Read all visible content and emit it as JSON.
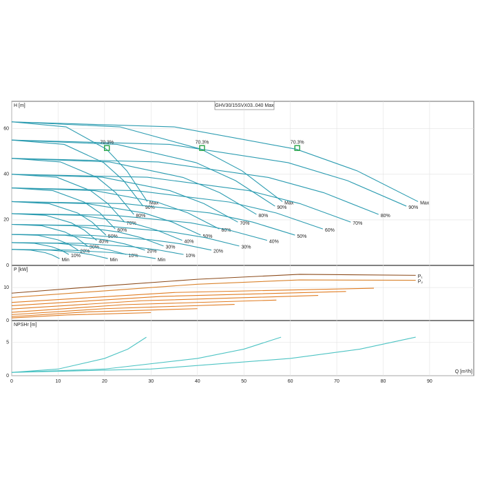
{
  "chart_data": [
    {
      "type": "line",
      "y_label": "H [m]",
      "annotation": "GHV30/15SVX03..040 Max",
      "xlim": [
        0,
        99.5
      ],
      "ylim": [
        0,
        72
      ],
      "yticks": [
        0,
        20,
        40,
        60
      ],
      "grid": true,
      "color": "#2a9bb0",
      "series": [
        {
          "name": "Max",
          "x": [
            0,
            11.7,
            20.4,
            24.8,
            29.2
          ],
          "values": [
            63,
            60.8,
            51.0,
            41.5,
            28
          ]
        },
        {
          "name": "90%",
          "x": [
            0,
            11.3,
            19.8,
            24.1,
            28.3
          ],
          "values": [
            55,
            53.1,
            45.1,
            37.2,
            26
          ]
        },
        {
          "name": "80%",
          "x": [
            0,
            10.5,
            18.4,
            22.4,
            26.3
          ],
          "values": [
            47,
            45.4,
            38.6,
            31.9,
            22.4
          ]
        },
        {
          "name": "70%",
          "x": [
            0,
            9.7,
            17,
            20.7,
            24.3
          ],
          "values": [
            40,
            38.7,
            32.8,
            27.1,
            19
          ]
        },
        {
          "name": "60%",
          "x": [
            0,
            8.9,
            15.6,
            19,
            22.3
          ],
          "values": [
            34,
            32.8,
            27.8,
            23,
            16
          ]
        },
        {
          "name": "50%",
          "x": [
            0,
            8.1,
            14.2,
            17.3,
            20.3
          ],
          "values": [
            28,
            27.1,
            23,
            19,
            13.3
          ]
        },
        {
          "name": "40%",
          "x": [
            0,
            7.3,
            12.8,
            15.6,
            18.3
          ],
          "values": [
            22.7,
            22,
            18.7,
            15.5,
            11
          ]
        },
        {
          "name": "30%",
          "x": [
            0,
            6.5,
            11.4,
            13.9,
            16.3
          ],
          "values": [
            18,
            17.4,
            14.7,
            12.2,
            8.5
          ]
        },
        {
          "name": "20%",
          "x": [
            0,
            5.7,
            10,
            12.2,
            14.3
          ],
          "values": [
            13.6,
            13.2,
            11.2,
            9.4,
            6.7
          ]
        },
        {
          "name": "10%",
          "x": [
            0,
            4.9,
            8.6,
            10.5,
            12.3
          ],
          "values": [
            10,
            9.7,
            8.2,
            6.8,
            4.8
          ]
        },
        {
          "name": "Min",
          "x": [
            0,
            4.1,
            7.2,
            8.8,
            10.3
          ],
          "values": [
            7,
            6.7,
            5.6,
            4.5,
            3
          ]
        },
        {
          "name": "Max",
          "x": [
            0,
            23.3,
            40.8,
            49.6,
            58.3
          ],
          "values": [
            63,
            60.8,
            51.0,
            41.5,
            28
          ]
        },
        {
          "name": "90%",
          "x": [
            0,
            22.7,
            39.7,
            48.2,
            56.7
          ],
          "values": [
            55,
            53.1,
            45.1,
            37.2,
            26
          ]
        },
        {
          "name": "80%",
          "x": [
            0,
            21.1,
            36.9,
            44.8,
            52.7
          ],
          "values": [
            47,
            45.4,
            38.6,
            31.9,
            22.4
          ]
        },
        {
          "name": "70%",
          "x": [
            0,
            19.5,
            34.1,
            41.4,
            48.7
          ],
          "values": [
            40,
            38.7,
            32.8,
            27.1,
            19
          ]
        },
        {
          "name": "60%",
          "x": [
            0,
            17.9,
            31.3,
            38,
            44.7
          ],
          "values": [
            34,
            32.8,
            27.8,
            23,
            16
          ]
        },
        {
          "name": "50%",
          "x": [
            0,
            16.3,
            28.5,
            34.6,
            40.7
          ],
          "values": [
            28,
            27.1,
            23,
            19,
            13.3
          ]
        },
        {
          "name": "40%",
          "x": [
            0,
            14.7,
            25.7,
            31.2,
            36.7
          ],
          "values": [
            22.7,
            22,
            18.7,
            15.5,
            11
          ]
        },
        {
          "name": "30%",
          "x": [
            0,
            13.1,
            22.9,
            27.8,
            32.7
          ],
          "values": [
            18,
            17.4,
            14.7,
            12.2,
            8.5
          ]
        },
        {
          "name": "20%",
          "x": [
            0,
            11.5,
            20.1,
            24.4,
            28.7
          ],
          "values": [
            13.6,
            13.2,
            11.2,
            9.4,
            6.7
          ]
        },
        {
          "name": "10%",
          "x": [
            0,
            9.9,
            17.3,
            21,
            24.7
          ],
          "values": [
            10,
            9.7,
            8.2,
            6.8,
            4.8
          ]
        },
        {
          "name": "Min",
          "x": [
            0,
            8.3,
            14.5,
            17.6,
            20.7
          ],
          "values": [
            7,
            6.7,
            5.6,
            4.5,
            3
          ]
        },
        {
          "name": "Max",
          "x": [
            0,
            35,
            61.3,
            74.4,
            87.5
          ],
          "values": [
            63,
            60.8,
            51.0,
            41.5,
            28
          ]
        },
        {
          "name": "90%",
          "x": [
            0,
            34,
            59.5,
            72.3,
            85
          ],
          "values": [
            55,
            53.1,
            45.1,
            37.2,
            26
          ]
        },
        {
          "name": "80%",
          "x": [
            0,
            31.6,
            55.3,
            67.2,
            79
          ],
          "values": [
            47,
            45.4,
            38.6,
            31.9,
            22.4
          ]
        },
        {
          "name": "70%",
          "x": [
            0,
            29.2,
            51.1,
            62.1,
            73
          ],
          "values": [
            40,
            38.7,
            32.8,
            27.1,
            19
          ]
        },
        {
          "name": "60%",
          "x": [
            0,
            26.8,
            46.9,
            57,
            67
          ],
          "values": [
            34,
            32.8,
            27.8,
            23,
            16
          ]
        },
        {
          "name": "50%",
          "x": [
            0,
            24.4,
            42.7,
            51.9,
            61
          ],
          "values": [
            28,
            27.1,
            23,
            19,
            13.3
          ]
        },
        {
          "name": "40%",
          "x": [
            0,
            22,
            38.5,
            46.8,
            55
          ],
          "values": [
            22.7,
            22,
            18.7,
            15.5,
            11
          ]
        },
        {
          "name": "30%",
          "x": [
            0,
            19.6,
            34.3,
            41.7,
            49
          ],
          "values": [
            18,
            17.4,
            14.7,
            12.2,
            8.5
          ]
        },
        {
          "name": "20%",
          "x": [
            0,
            17.2,
            30.1,
            36.6,
            43
          ],
          "values": [
            13.6,
            13.2,
            11.2,
            9.4,
            6.7
          ]
        },
        {
          "name": "10%",
          "x": [
            0,
            14.8,
            25.9,
            31.5,
            37
          ],
          "values": [
            10,
            9.7,
            8.2,
            6.8,
            4.8
          ]
        },
        {
          "name": "Min",
          "x": [
            0,
            12.4,
            21.7,
            26.4,
            31
          ],
          "values": [
            7,
            6.7,
            5.6,
            4.5,
            3
          ]
        }
      ],
      "markers": {
        "color": "#2fa84f",
        "x": [
          20.5,
          41,
          61.5
        ],
        "values": [
          51.5,
          51.5,
          51.5
        ],
        "labels": [
          "70.3%",
          "70.3%",
          "70.3%"
        ]
      }
    },
    {
      "type": "line",
      "y_label": "P [kW]",
      "xlim": [
        0,
        99.5
      ],
      "ylim": [
        0,
        16.7
      ],
      "yticks": [
        0,
        10
      ],
      "grid": true,
      "color": "#e07b20",
      "series": [
        {
          "name": "P₁",
          "color": "#8b4a1a",
          "x": [
            0,
            20,
            40,
            62,
            87
          ],
          "values": [
            8.3,
            10.5,
            12.5,
            14,
            13.7
          ]
        },
        {
          "name": "P₂",
          "color": "#d9822b",
          "x": [
            0,
            20,
            40,
            62,
            87
          ],
          "values": [
            7,
            9,
            11,
            12.3,
            12.2
          ]
        },
        {
          "x": [
            0,
            35,
            78
          ],
          "values": [
            5.5,
            8.5,
            9.8
          ]
        },
        {
          "x": [
            0,
            32,
            72
          ],
          "values": [
            4.5,
            7.3,
            8.8
          ]
        },
        {
          "x": [
            0,
            28,
            66
          ],
          "values": [
            3.5,
            6,
            7.6
          ]
        },
        {
          "x": [
            0,
            24,
            57
          ],
          "values": [
            2.5,
            4.8,
            6.2
          ]
        },
        {
          "x": [
            0,
            20,
            48
          ],
          "values": [
            1.8,
            3.6,
            4.9
          ]
        },
        {
          "x": [
            0,
            16,
            40
          ],
          "values": [
            1.2,
            2.6,
            3.6
          ]
        },
        {
          "x": [
            0,
            12,
            30
          ],
          "values": [
            0.8,
            1.7,
            2.4
          ]
        }
      ]
    },
    {
      "type": "line",
      "y_label": "NPSHr [m]",
      "x_label": "Q [m³/h]",
      "xlim": [
        0,
        99.5
      ],
      "ylim": [
        0,
        8.3
      ],
      "yticks": [
        0,
        5
      ],
      "xticks": [
        0,
        10,
        20,
        30,
        40,
        50,
        60,
        70,
        80,
        90
      ],
      "grid": true,
      "color": "#4cc3c3",
      "series": [
        {
          "x": [
            0,
            10,
            20,
            25,
            29
          ],
          "values": [
            0.5,
            1,
            2.6,
            4,
            5.8
          ]
        },
        {
          "x": [
            0,
            20,
            40,
            50,
            58
          ],
          "values": [
            0.5,
            1,
            2.6,
            4,
            5.8
          ]
        },
        {
          "x": [
            0,
            30,
            60,
            75,
            87
          ],
          "values": [
            0.5,
            1,
            2.6,
            4,
            5.8
          ]
        }
      ]
    }
  ]
}
